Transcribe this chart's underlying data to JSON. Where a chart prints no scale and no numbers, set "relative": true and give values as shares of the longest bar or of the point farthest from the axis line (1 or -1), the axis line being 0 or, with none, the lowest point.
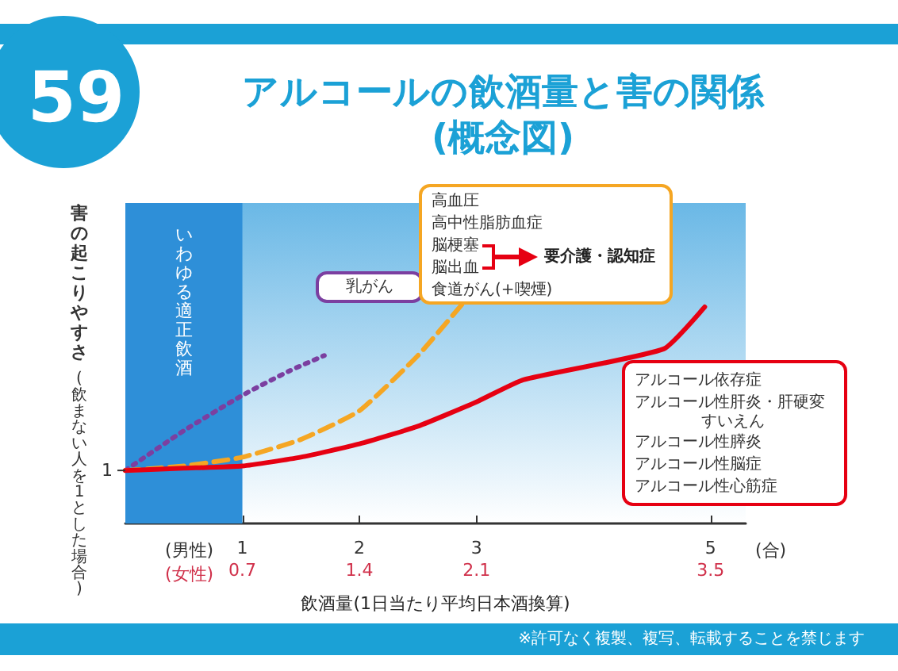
{
  "chart_data": {
    "type": "line",
    "title": "アルコールの飲酒量と害の関係",
    "subtitle": "(概念図)",
    "xlabel": "飲酒量(1日当たり平均日本酒換算)",
    "ylabel": "害の起こりやすさ",
    "relative": true,
    "marker": "none",
    "xlim": [
      0,
      5.3
    ],
    "xticks": [
      1,
      2,
      3,
      5
    ],
    "x2lim": [
      0,
      3.71
    ],
    "x2ticks": [
      0.7,
      1.4,
      2.1,
      3.5
    ],
    "bands": [
      {
        "axis": "x",
        "from": 0,
        "to": 1,
        "label": "いわゆる適正飲酒",
        "color": "#2e8fd8"
      }
    ],
    "series": [
      {
        "name": "乳がん",
        "color": "#7b3fa0",
        "line_style": "dotted",
        "x": [
          0,
          0.5,
          1,
          1.4,
          1.7
        ],
        "values": [
          0.24,
          0.42,
          0.58,
          0.69,
          0.76
        ]
      },
      {
        "color": "#f5a623",
        "line_style": "dashed",
        "x": [
          0,
          0.5,
          1,
          1.5,
          2,
          2.5,
          2.89
        ],
        "values": [
          0.24,
          0.26,
          0.3,
          0.38,
          0.51,
          0.76,
          1.0
        ]
      },
      {
        "color": "#e60012",
        "line_style": "solid",
        "x": [
          0,
          0.5,
          1,
          1.5,
          2,
          2.5,
          3,
          3.4,
          4.6,
          4.95
        ],
        "values": [
          0.24,
          0.25,
          0.26,
          0.3,
          0.36,
          0.44,
          0.55,
          0.65,
          0.79,
          0.98
        ]
      }
    ],
    "annotations": [
      "59",
      "高血圧",
      "高中性脂肪血症",
      "脳梗塞",
      "脳出血",
      "要介護・認知症",
      "食道がん(+喫煙)",
      "アルコール依存症",
      "アルコール性肝炎・肝硬変",
      "アルコール性膵炎",
      "アルコール性脳症",
      "アルコール性心筋症",
      "すいえん",
      "(男性)",
      "(女性)",
      "(合)",
      "(飲まない人を1とした場合)",
      "1",
      "※許可なく複製、複写、転載することを禁じます"
    ]
  }
}
